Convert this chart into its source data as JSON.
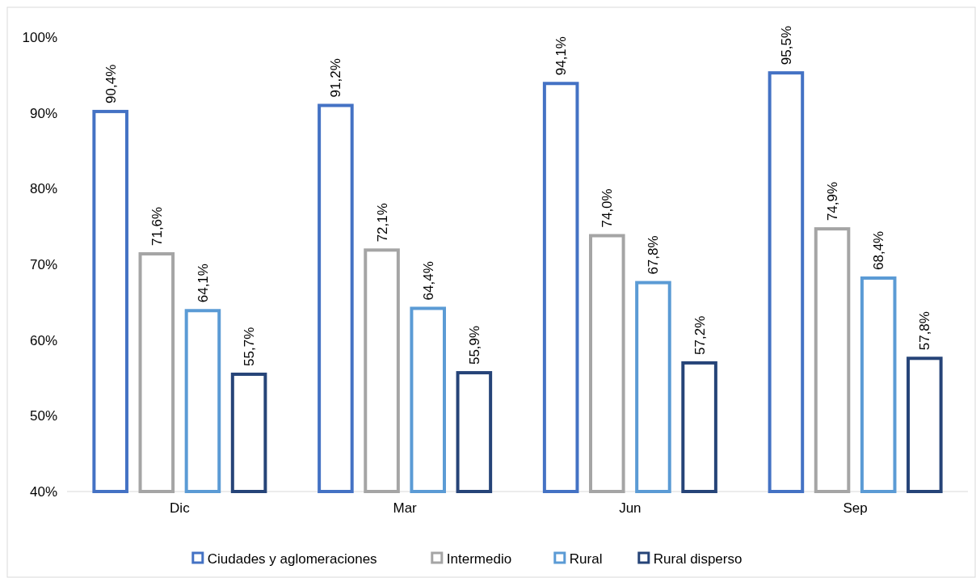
{
  "chart_data": {
    "type": "bar",
    "categories": [
      "Dic",
      "Mar",
      "Jun",
      "Sep"
    ],
    "series": [
      {
        "name": "Ciudades y aglomeraciones",
        "color": "#4472c4",
        "values": [
          90.4,
          91.2,
          94.1,
          95.5
        ],
        "value_labels": [
          "90,4%",
          "91,2%",
          "94,1%",
          "95,5%"
        ]
      },
      {
        "name": "Intermedio",
        "color": "#a5a5a5",
        "values": [
          71.6,
          72.1,
          74.0,
          74.9
        ],
        "value_labels": [
          "71,6%",
          "72,1%",
          "74,0%",
          "74,9%"
        ]
      },
      {
        "name": "Rural",
        "color": "#5b9bd5",
        "values": [
          64.1,
          64.4,
          67.8,
          68.4
        ],
        "value_labels": [
          "64,1%",
          "64,4%",
          "67,8%",
          "68,4%"
        ]
      },
      {
        "name": "Rural disperso",
        "color": "#264478",
        "values": [
          55.7,
          55.9,
          57.2,
          57.8
        ],
        "value_labels": [
          "55,7%",
          "55,9%",
          "57,2%",
          "57,8%"
        ]
      }
    ],
    "ylim": [
      40,
      100
    ],
    "yticks": [
      {
        "value": 40,
        "label": "40%"
      },
      {
        "value": 50,
        "label": "50%"
      },
      {
        "value": 60,
        "label": "60%"
      },
      {
        "value": 70,
        "label": "70%"
      },
      {
        "value": 80,
        "label": "80%"
      },
      {
        "value": 90,
        "label": "90%"
      },
      {
        "value": 100,
        "label": "100%"
      }
    ],
    "grid": false,
    "legend": "bottom"
  }
}
